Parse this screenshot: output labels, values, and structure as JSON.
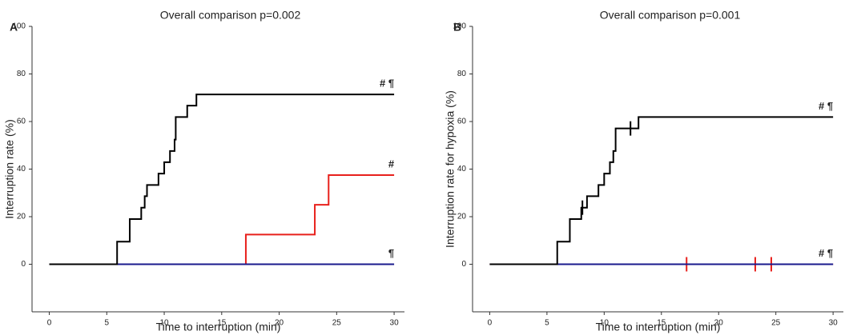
{
  "chart_data": [
    {
      "type": "step",
      "panel": "A",
      "title": "Overall comparison p=0.002",
      "xlabel": "Time to interruption (min)",
      "ylabel": "Interruption rate (%)",
      "xlim": [
        -1.5,
        30.9
      ],
      "ylim": [
        -20,
        100
      ],
      "xticks": [
        0,
        5,
        10,
        15,
        20,
        25,
        30
      ],
      "yticks": [
        0,
        20,
        40,
        60,
        80,
        100
      ],
      "series": [
        {
          "color": "#e8201c",
          "label": "#",
          "x": [
            0,
            17.1,
            23.1,
            24.3,
            30
          ],
          "values": [
            0,
            12.5,
            25,
            37.5,
            37.5
          ],
          "censored": []
        },
        {
          "color": "#1a1a8c",
          "label": "¶",
          "x": [
            0,
            30
          ],
          "values": [
            0,
            0
          ],
          "censored": []
        },
        {
          "color": "#000000",
          "label": "# ¶",
          "x": [
            0,
            5.9,
            7,
            8,
            8.3,
            8.5,
            9.5,
            10,
            10.5,
            10.9,
            11,
            12,
            12.8,
            30
          ],
          "values": [
            0,
            9.5,
            19,
            23.8,
            28.6,
            33.3,
            38.1,
            42.9,
            47.6,
            52.4,
            61.9,
            66.7,
            71.4,
            71.4
          ],
          "censored": []
        }
      ]
    },
    {
      "type": "step",
      "panel": "B",
      "title": "Overall comparison p=0.001",
      "xlabel": "Time to interruption (min)",
      "ylabel": "Interruption rate for hypoxia (%)",
      "xlim": [
        -1.5,
        30.9
      ],
      "ylim": [
        -20,
        100
      ],
      "xticks": [
        0,
        5,
        10,
        15,
        20,
        25,
        30
      ],
      "yticks": [
        0,
        20,
        40,
        60,
        80,
        100
      ],
      "series": [
        {
          "color": "#e8201c",
          "x": [
            0,
            30
          ],
          "values": [
            0,
            0
          ],
          "censored": [
            17.2,
            23.2,
            24.6
          ]
        },
        {
          "color": "#1a1a8c",
          "label": "# ¶",
          "x": [
            0,
            30
          ],
          "values": [
            0,
            0
          ],
          "censored": []
        },
        {
          "color": "#000000",
          "label": "# ¶",
          "x": [
            0,
            5.9,
            7,
            8,
            8.5,
            9.5,
            10,
            10.5,
            10.8,
            11,
            13,
            30
          ],
          "values": [
            0,
            9.5,
            19,
            23.8,
            28.6,
            33.3,
            38.1,
            42.9,
            47.6,
            57.1,
            61.9,
            61.9
          ],
          "censored": [
            8.1,
            12.3
          ]
        }
      ]
    }
  ]
}
